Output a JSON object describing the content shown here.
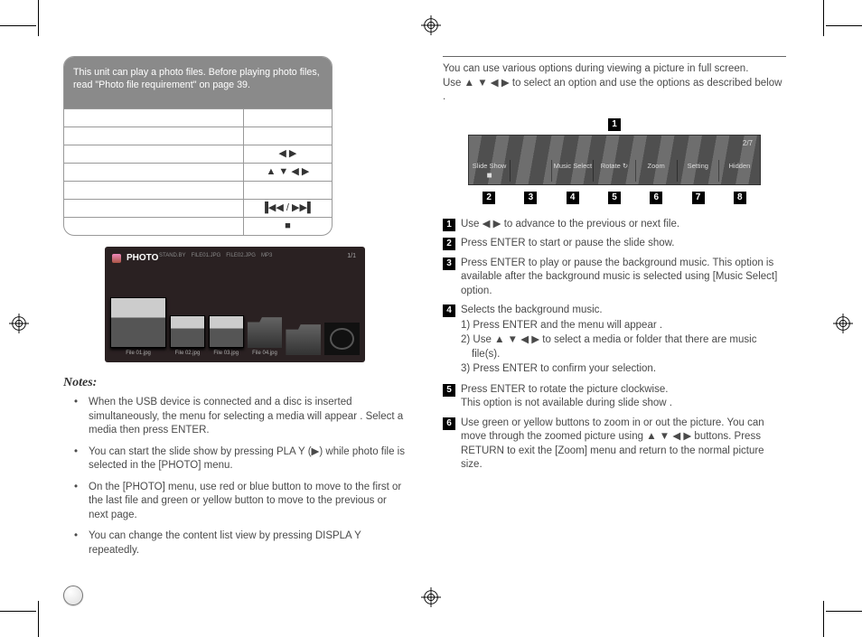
{
  "leftCol": {
    "lead": "This unit can play a photo files. Before playing photo files, read \"Photo file requirement\" on page 39.",
    "tableRows": [
      {
        "a": "",
        "b": ""
      },
      {
        "a": "",
        "b": ""
      },
      {
        "a": "",
        "b": "◀ ▶"
      },
      {
        "a": "",
        "b": "▲ ▼ ◀ ▶"
      },
      {
        "a": "",
        "b": ""
      },
      {
        "a": "",
        "b": "▐◀◀ / ▶▶▌"
      },
      {
        "a": "",
        "b": "■"
      }
    ],
    "strip": {
      "tag": "PHOTO",
      "tabs": [
        "STAND.BY",
        "FILE01.JPG",
        "FILE02.JPG",
        "MP3"
      ],
      "page": "1/1",
      "thumbs": [
        {
          "kind": "pic",
          "cap": "File 01.jpg",
          "big": true
        },
        {
          "kind": "pic",
          "cap": "File 02.jpg"
        },
        {
          "kind": "pic",
          "cap": "File 03.jpg"
        },
        {
          "kind": "folder",
          "cap": "File 04.jpg"
        },
        {
          "kind": "folder",
          "cap": ""
        },
        {
          "kind": "cam",
          "cap": ""
        }
      ]
    },
    "notesHeading": "Notes:",
    "notes": [
      "When the USB device is connected and a disc is inserted simultaneously, the menu for selecting a media will appear . Select a media then press ENTER.",
      "You can start the slide show by pressing PLA Y (▶) while photo file is selected in the [PHOTO] menu.",
      "On the [PHOTO] menu, use red or blue button to move to the first or the last file and green or yellow button to move to the previous or next page.",
      "You can change the content list view by pressing DISPLA Y repeatedly."
    ]
  },
  "rightCol": {
    "intro1": "You can use various options during viewing a picture in full screen.",
    "intro2": "Use ▲ ▼ ◀ ▶ to select an option and use the options as described below .",
    "osd": {
      "topNum": "1",
      "count": "2/7",
      "items": [
        "Slide Show ◼",
        "",
        "Music Select",
        "Rotate ↻",
        "Zoom",
        "Setting",
        "Hidden"
      ],
      "bottomNums": [
        "2",
        "3",
        "4",
        "5",
        "6",
        "7",
        "8"
      ]
    },
    "numbered": [
      {
        "n": "1",
        "lines": [
          "Use ◀ ▶ to advance to the previous or next file."
        ]
      },
      {
        "n": "2",
        "lines": [
          "Press ENTER to start or pause the slide show."
        ]
      },
      {
        "n": "3",
        "lines": [
          "Press ENTER to play or pause the background music.  This option is available after the background music is selected using [Music Select] option."
        ]
      },
      {
        "n": "4",
        "lines": [
          "Selects the background music."
        ],
        "sub": [
          "1)  Press ENTER and the menu will appear .",
          "2) Use  ▲ ▼ ◀ ▶ to select a media or folder that there are music file(s).",
          "3)  Press ENTER to confirm your selection."
        ]
      },
      {
        "n": "5",
        "lines": [
          "Press ENTER to rotate the picture clockwise.",
          "This option is not available during slide show ."
        ]
      },
      {
        "n": "6",
        "lines": [
          "Use green or yellow buttons to zoom in or out the picture.  You can move through the zoomed picture using ▲ ▼ ◀ ▶ buttons. Press RETURN to exit the [Zoom] menu and return to the normal picture size."
        ]
      }
    ]
  }
}
